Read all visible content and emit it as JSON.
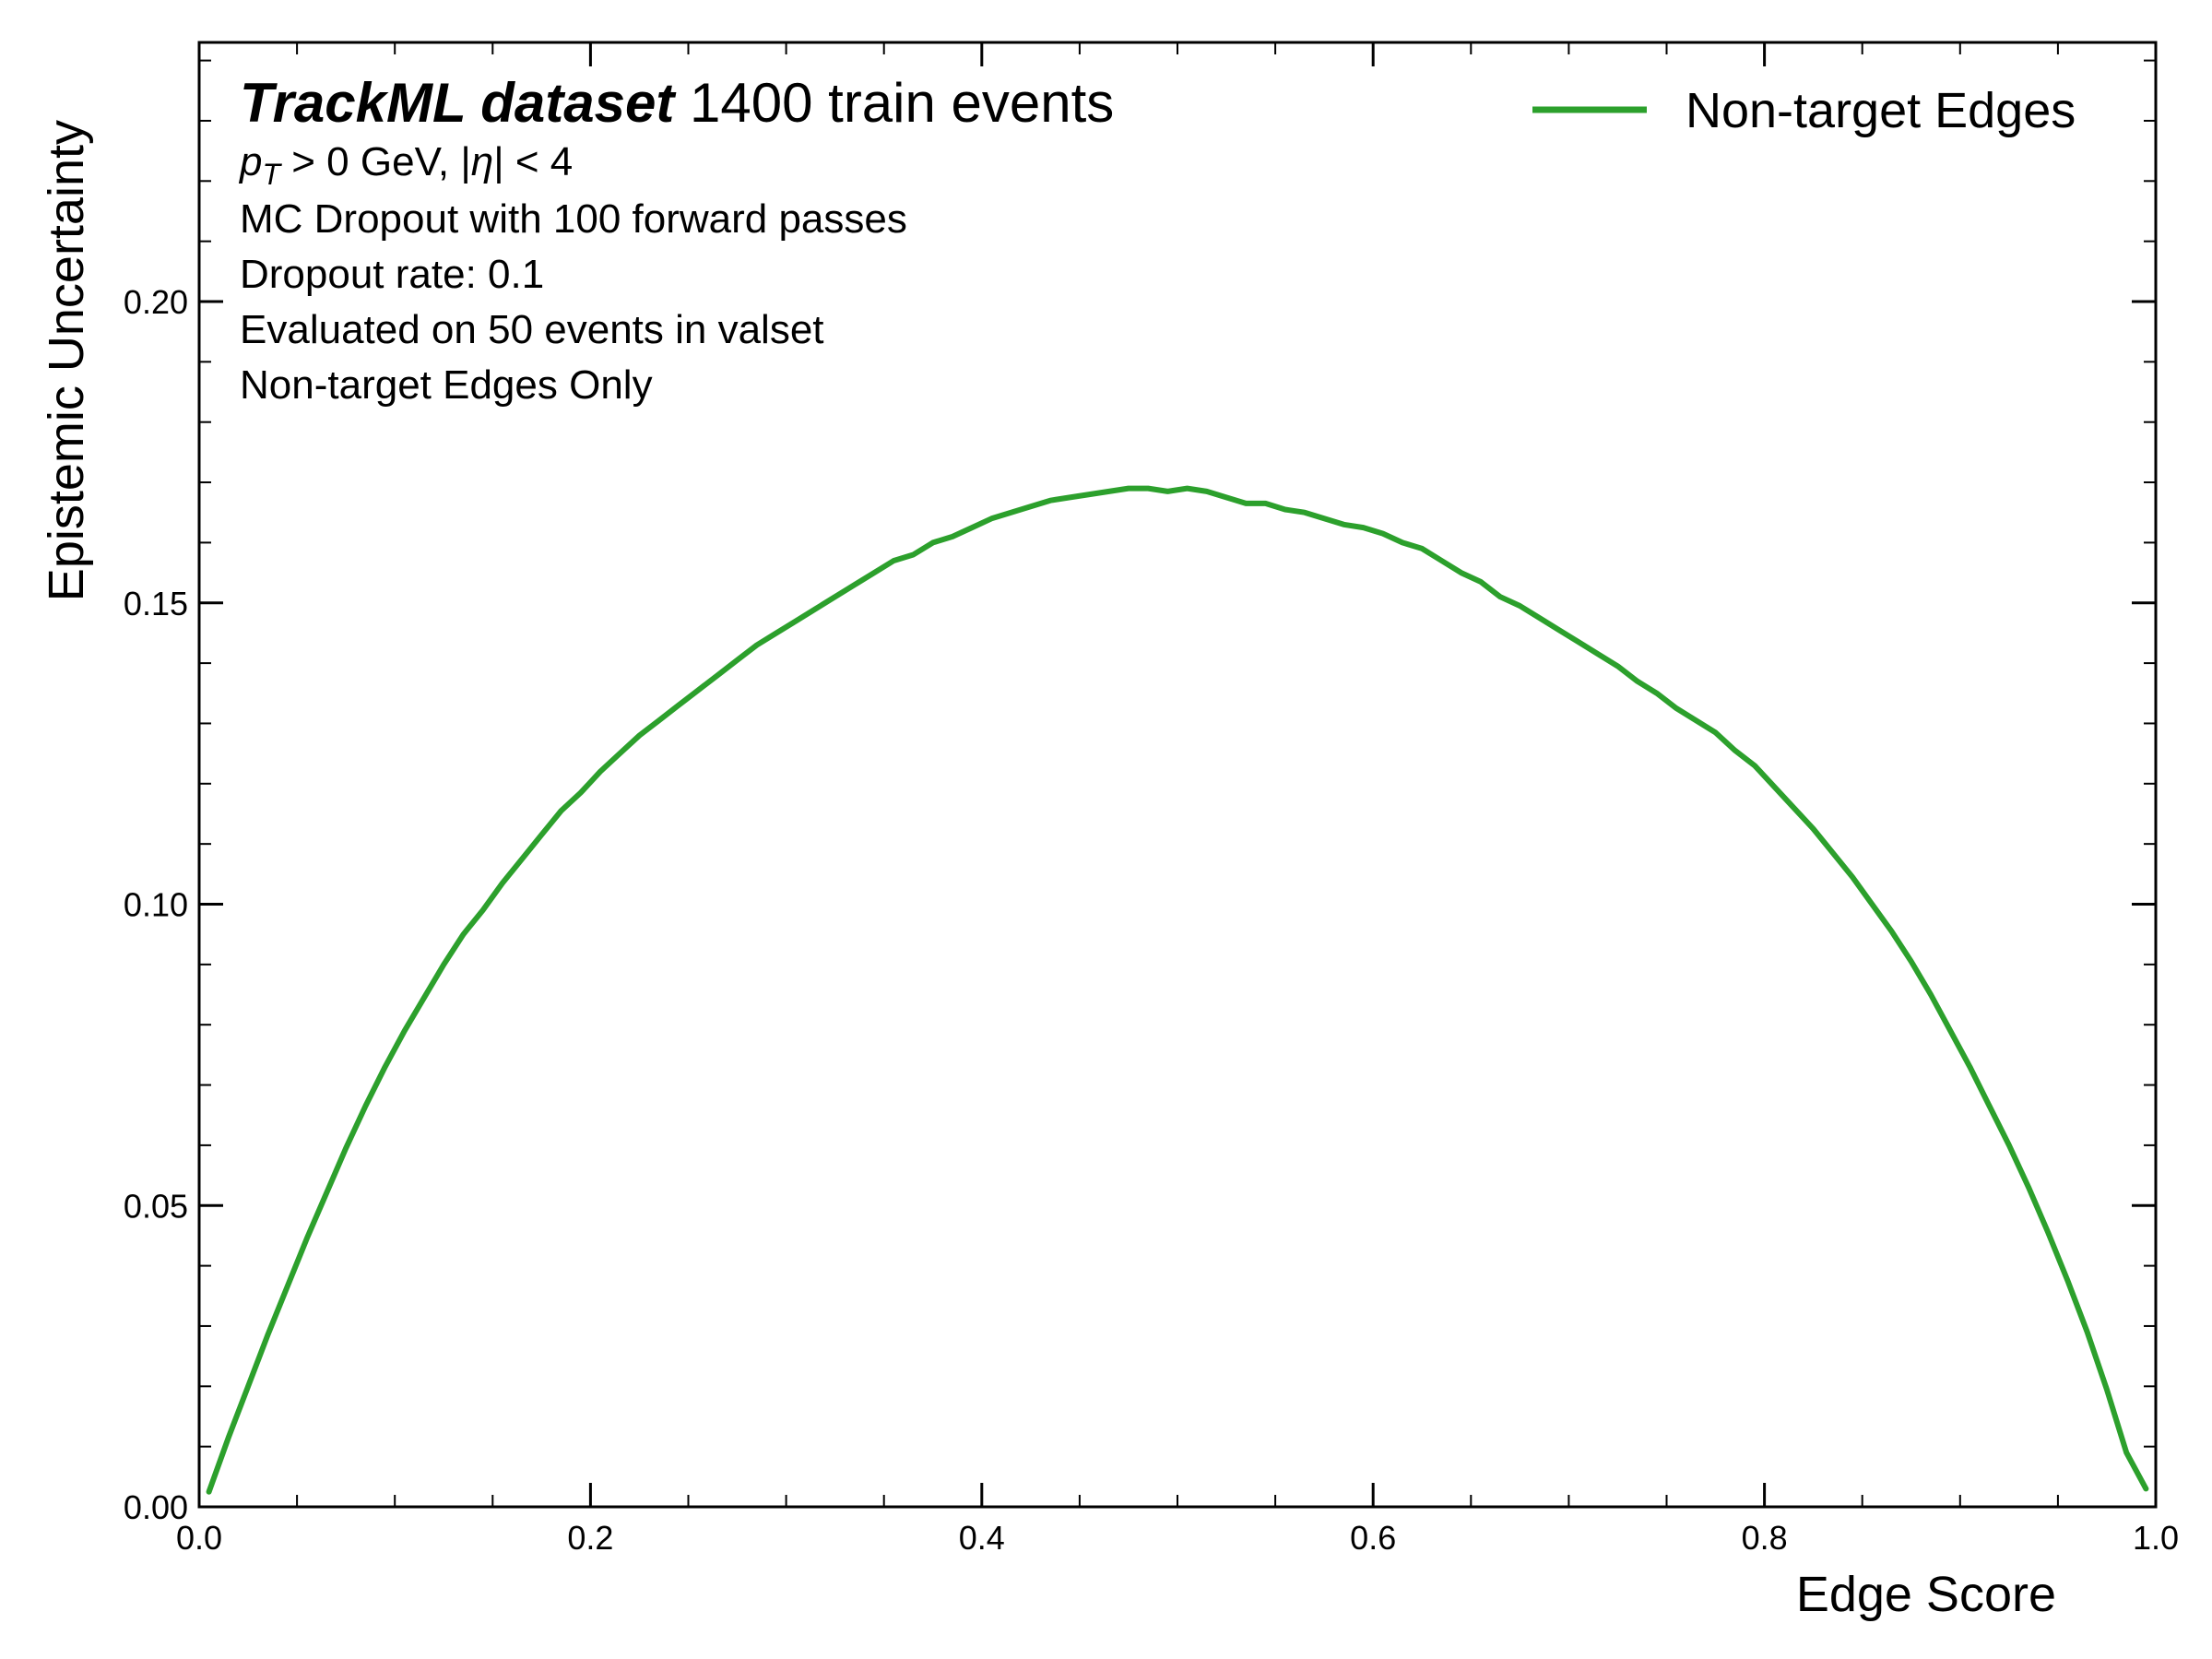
{
  "chart_data": {
    "type": "line",
    "title": "",
    "xlabel": "Edge Score",
    "ylabel": "Epistemic Uncertainty",
    "xlim": [
      0.0,
      1.0
    ],
    "ylim": [
      0.0,
      0.243
    ],
    "xticks": [
      0.0,
      0.2,
      0.4,
      0.6,
      0.8,
      1.0
    ],
    "xtick_labels": [
      "0.0",
      "0.2",
      "0.4",
      "0.6",
      "0.8",
      "1.0"
    ],
    "yticks": [
      0.0,
      0.05,
      0.1,
      0.15,
      0.2
    ],
    "ytick_labels": [
      "0.00",
      "0.05",
      "0.10",
      "0.15",
      "0.20"
    ],
    "grid": false,
    "legend_position": "top-right",
    "annotations": {
      "experiment_bold": "TrackML dataset",
      "experiment_rest": " 1400 train events",
      "cut_pt_p": "p",
      "cut_pt_sub": "T",
      "cut_pt_rest": " > 0 GeV, |",
      "cut_eta_symbol": "η",
      "cut_eta_rest": "| < 4",
      "line2": "MC Dropout with 100 forward passes",
      "line3": "Dropout rate: 0.1",
      "line4": "Evaluated on 50 events in valset",
      "line5": "Non-target Edges Only"
    },
    "series": [
      {
        "name": "Non-target Edges",
        "color": "#2ca02c",
        "x": [
          0.005,
          0.015,
          0.025,
          0.035,
          0.045,
          0.055,
          0.065,
          0.075,
          0.085,
          0.095,
          0.105,
          0.115,
          0.125,
          0.135,
          0.145,
          0.155,
          0.165,
          0.175,
          0.185,
          0.195,
          0.205,
          0.215,
          0.225,
          0.235,
          0.245,
          0.255,
          0.265,
          0.275,
          0.285,
          0.295,
          0.305,
          0.315,
          0.325,
          0.335,
          0.345,
          0.355,
          0.365,
          0.375,
          0.385,
          0.395,
          0.405,
          0.415,
          0.425,
          0.435,
          0.445,
          0.455,
          0.465,
          0.475,
          0.485,
          0.495,
          0.505,
          0.515,
          0.525,
          0.535,
          0.545,
          0.555,
          0.565,
          0.575,
          0.585,
          0.595,
          0.605,
          0.615,
          0.625,
          0.635,
          0.645,
          0.655,
          0.665,
          0.675,
          0.685,
          0.695,
          0.705,
          0.715,
          0.725,
          0.735,
          0.745,
          0.755,
          0.765,
          0.775,
          0.785,
          0.795,
          0.805,
          0.815,
          0.825,
          0.835,
          0.845,
          0.855,
          0.865,
          0.875,
          0.885,
          0.895,
          0.905,
          0.915,
          0.925,
          0.935,
          0.945,
          0.955,
          0.965,
          0.975,
          0.985,
          0.995
        ],
        "y": [
          0.0025,
          0.0115,
          0.02,
          0.0285,
          0.0365,
          0.0445,
          0.052,
          0.0595,
          0.0665,
          0.073,
          0.079,
          0.0845,
          0.09,
          0.095,
          0.099,
          0.1035,
          0.1075,
          0.1115,
          0.1155,
          0.1185,
          0.122,
          0.125,
          0.128,
          0.1305,
          0.133,
          0.1355,
          0.138,
          0.1405,
          0.143,
          0.145,
          0.147,
          0.149,
          0.151,
          0.153,
          0.155,
          0.157,
          0.158,
          0.16,
          0.161,
          0.1625,
          0.164,
          0.165,
          0.166,
          0.167,
          0.1675,
          0.168,
          0.1685,
          0.169,
          0.169,
          0.1685,
          0.169,
          0.1685,
          0.1675,
          0.1665,
          0.1665,
          0.1655,
          0.165,
          0.164,
          0.163,
          0.1625,
          0.1615,
          0.16,
          0.159,
          0.157,
          0.155,
          0.1535,
          0.151,
          0.1495,
          0.1475,
          0.1455,
          0.1435,
          0.1415,
          0.1395,
          0.137,
          0.135,
          0.1325,
          0.1305,
          0.1285,
          0.1255,
          0.123,
          0.1195,
          0.116,
          0.1125,
          0.1085,
          0.1045,
          0.1,
          0.0955,
          0.0905,
          0.085,
          0.079,
          0.073,
          0.0665,
          0.06,
          0.053,
          0.0455,
          0.0375,
          0.029,
          0.0195,
          0.009,
          0.003
        ]
      }
    ]
  }
}
